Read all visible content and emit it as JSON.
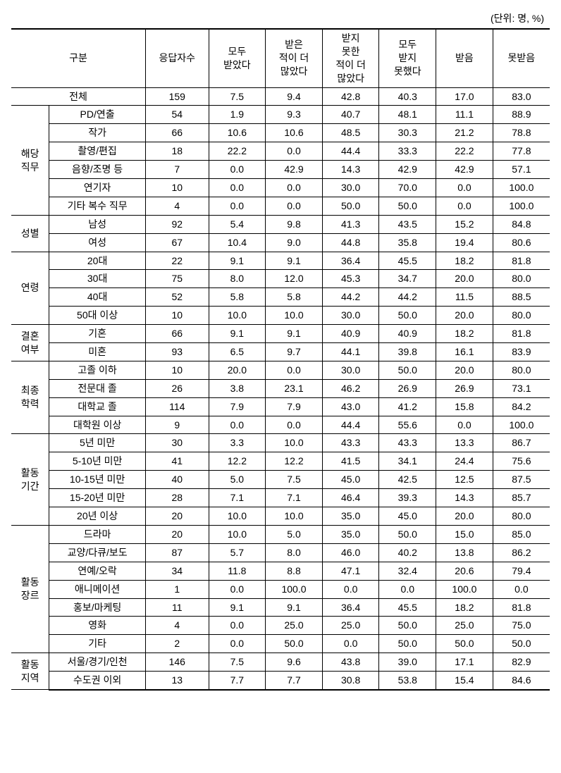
{
  "unit_label": "(단위: 명, %)",
  "headers": {
    "category": "구분",
    "respondents": "응답자수",
    "c1": "모두\n받았다",
    "c2": "받은\n적이 더\n많았다",
    "c3": "받지\n못한\n적이 더\n많았다",
    "c4": "모두\n받지\n못했다",
    "c5": "받음",
    "c6": "못받음"
  },
  "total": {
    "label": "전체",
    "n": "159",
    "v": [
      "7.5",
      "9.4",
      "42.8",
      "40.3",
      "17.0",
      "83.0"
    ]
  },
  "groups": [
    {
      "label": "해당\n직무",
      "rows": [
        {
          "label": "PD/연출",
          "n": "54",
          "v": [
            "1.9",
            "9.3",
            "40.7",
            "48.1",
            "11.1",
            "88.9"
          ]
        },
        {
          "label": "작가",
          "n": "66",
          "v": [
            "10.6",
            "10.6",
            "48.5",
            "30.3",
            "21.2",
            "78.8"
          ]
        },
        {
          "label": "촬영/편집",
          "n": "18",
          "v": [
            "22.2",
            "0.0",
            "44.4",
            "33.3",
            "22.2",
            "77.8"
          ]
        },
        {
          "label": "음향/조명 등",
          "n": "7",
          "v": [
            "0.0",
            "42.9",
            "14.3",
            "42.9",
            "42.9",
            "57.1"
          ]
        },
        {
          "label": "연기자",
          "n": "10",
          "v": [
            "0.0",
            "0.0",
            "30.0",
            "70.0",
            "0.0",
            "100.0"
          ]
        },
        {
          "label": "기타 복수 직무",
          "n": "4",
          "v": [
            "0.0",
            "0.0",
            "50.0",
            "50.0",
            "0.0",
            "100.0"
          ]
        }
      ]
    },
    {
      "label": "성별",
      "rows": [
        {
          "label": "남성",
          "n": "92",
          "v": [
            "5.4",
            "9.8",
            "41.3",
            "43.5",
            "15.2",
            "84.8"
          ]
        },
        {
          "label": "여성",
          "n": "67",
          "v": [
            "10.4",
            "9.0",
            "44.8",
            "35.8",
            "19.4",
            "80.6"
          ]
        }
      ]
    },
    {
      "label": "연령",
      "rows": [
        {
          "label": "20대",
          "n": "22",
          "v": [
            "9.1",
            "9.1",
            "36.4",
            "45.5",
            "18.2",
            "81.8"
          ]
        },
        {
          "label": "30대",
          "n": "75",
          "v": [
            "8.0",
            "12.0",
            "45.3",
            "34.7",
            "20.0",
            "80.0"
          ]
        },
        {
          "label": "40대",
          "n": "52",
          "v": [
            "5.8",
            "5.8",
            "44.2",
            "44.2",
            "11.5",
            "88.5"
          ]
        },
        {
          "label": "50대 이상",
          "n": "10",
          "v": [
            "10.0",
            "10.0",
            "30.0",
            "50.0",
            "20.0",
            "80.0"
          ]
        }
      ]
    },
    {
      "label": "결혼\n여부",
      "rows": [
        {
          "label": "기혼",
          "n": "66",
          "v": [
            "9.1",
            "9.1",
            "40.9",
            "40.9",
            "18.2",
            "81.8"
          ]
        },
        {
          "label": "미혼",
          "n": "93",
          "v": [
            "6.5",
            "9.7",
            "44.1",
            "39.8",
            "16.1",
            "83.9"
          ]
        }
      ]
    },
    {
      "label": "최종\n학력",
      "rows": [
        {
          "label": "고졸 이하",
          "n": "10",
          "v": [
            "20.0",
            "0.0",
            "30.0",
            "50.0",
            "20.0",
            "80.0"
          ]
        },
        {
          "label": "전문대 졸",
          "n": "26",
          "v": [
            "3.8",
            "23.1",
            "46.2",
            "26.9",
            "26.9",
            "73.1"
          ]
        },
        {
          "label": "대학교 졸",
          "n": "114",
          "v": [
            "7.9",
            "7.9",
            "43.0",
            "41.2",
            "15.8",
            "84.2"
          ]
        },
        {
          "label": "대학원 이상",
          "n": "9",
          "v": [
            "0.0",
            "0.0",
            "44.4",
            "55.6",
            "0.0",
            "100.0"
          ]
        }
      ]
    },
    {
      "label": "활동\n기간",
      "rows": [
        {
          "label": "5년 미만",
          "n": "30",
          "v": [
            "3.3",
            "10.0",
            "43.3",
            "43.3",
            "13.3",
            "86.7"
          ]
        },
        {
          "label": "5-10년 미만",
          "n": "41",
          "v": [
            "12.2",
            "12.2",
            "41.5",
            "34.1",
            "24.4",
            "75.6"
          ]
        },
        {
          "label": "10-15년 미만",
          "n": "40",
          "v": [
            "5.0",
            "7.5",
            "45.0",
            "42.5",
            "12.5",
            "87.5"
          ]
        },
        {
          "label": "15-20년 미만",
          "n": "28",
          "v": [
            "7.1",
            "7.1",
            "46.4",
            "39.3",
            "14.3",
            "85.7"
          ]
        },
        {
          "label": "20년 이상",
          "n": "20",
          "v": [
            "10.0",
            "10.0",
            "35.0",
            "45.0",
            "20.0",
            "80.0"
          ]
        }
      ]
    },
    {
      "label": "활동\n장르",
      "rows": [
        {
          "label": "드라마",
          "n": "20",
          "v": [
            "10.0",
            "5.0",
            "35.0",
            "50.0",
            "15.0",
            "85.0"
          ]
        },
        {
          "label": "교양/다큐/보도",
          "n": "87",
          "v": [
            "5.7",
            "8.0",
            "46.0",
            "40.2",
            "13.8",
            "86.2"
          ]
        },
        {
          "label": "연예/오락",
          "n": "34",
          "v": [
            "11.8",
            "8.8",
            "47.1",
            "32.4",
            "20.6",
            "79.4"
          ]
        },
        {
          "label": "애니메이션",
          "n": "1",
          "v": [
            "0.0",
            "100.0",
            "0.0",
            "0.0",
            "100.0",
            "0.0"
          ]
        },
        {
          "label": "홍보/마케팅",
          "n": "11",
          "v": [
            "9.1",
            "9.1",
            "36.4",
            "45.5",
            "18.2",
            "81.8"
          ]
        },
        {
          "label": "영화",
          "n": "4",
          "v": [
            "0.0",
            "25.0",
            "25.0",
            "50.0",
            "25.0",
            "75.0"
          ]
        },
        {
          "label": "기타",
          "n": "2",
          "v": [
            "0.0",
            "50.0",
            "0.0",
            "50.0",
            "50.0",
            "50.0"
          ]
        }
      ]
    },
    {
      "label": "활동\n지역",
      "rows": [
        {
          "label": "서울/경기/인천",
          "n": "146",
          "v": [
            "7.5",
            "9.6",
            "43.8",
            "39.0",
            "17.1",
            "82.9"
          ]
        },
        {
          "label": "수도권 이외",
          "n": "13",
          "v": [
            "7.7",
            "7.7",
            "30.8",
            "53.8",
            "15.4",
            "84.6"
          ]
        }
      ]
    }
  ]
}
